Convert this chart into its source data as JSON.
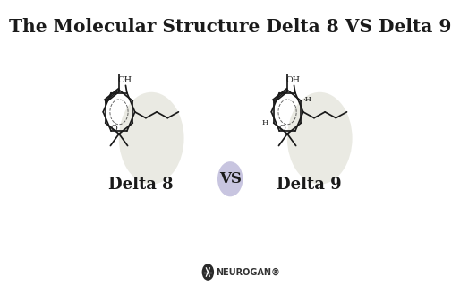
{
  "title": "The Molecular Structure Delta 8 VS Delta 9",
  "title_fontsize": 14.5,
  "title_fontweight": "bold",
  "background_color": "#ffffff",
  "label_delta8": "Delta 8",
  "label_delta9": "Delta 9",
  "label_vs": "VS",
  "label_fontsize": 13,
  "vs_fontsize": 12,
  "neurogan_text": "NEUROGAN®",
  "neurogan_fontsize": 7.0,
  "highlight_color": "#d6d6c8",
  "vs_circle_color": "#c8c5e0",
  "text_color": "#1a1a1a",
  "line_color": "#1a1a1a",
  "neurogan_bg": "#2a2a2a",
  "lw": 1.25
}
